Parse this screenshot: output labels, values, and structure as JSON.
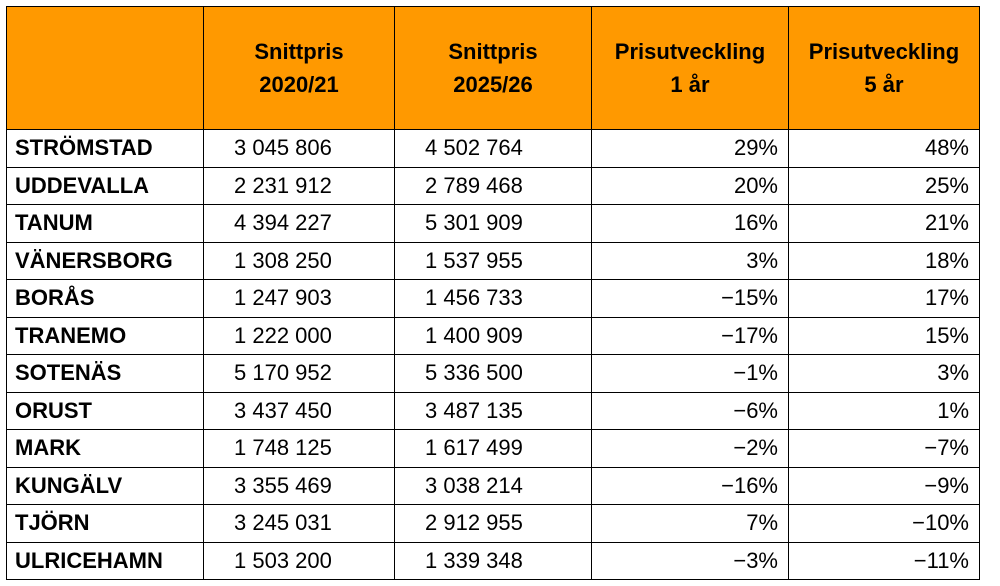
{
  "header": {
    "col0": "",
    "col1": [
      "Snittpris",
      "2020/21"
    ],
    "col2": [
      "Snittpris",
      "2025/26"
    ],
    "col3": [
      "Prisutveckling",
      "1 år"
    ],
    "col4": [
      "Prisutveckling",
      "5 år"
    ]
  },
  "rows": [
    {
      "name": "STRÖMSTAD",
      "p1": "3 045 806",
      "p2": "4 502 764",
      "y1": "29%",
      "y5": "48%"
    },
    {
      "name": "UDDEVALLA",
      "p1": "2 231 912",
      "p2": "2 789 468",
      "y1": "20%",
      "y5": "25%"
    },
    {
      "name": "TANUM",
      "p1": "4 394 227",
      "p2": "5 301 909",
      "y1": "16%",
      "y5": "21%"
    },
    {
      "name": "VÄNERSBORG",
      "p1": "1 308 250",
      "p2": "1 537 955",
      "y1": "3%",
      "y5": "18%"
    },
    {
      "name": "BORÅS",
      "p1": "1 247 903",
      "p2": "1 456 733",
      "y1": "−15%",
      "y5": "17%"
    },
    {
      "name": "TRANEMO",
      "p1": "1 222 000",
      "p2": "1 400 909",
      "y1": "−17%",
      "y5": "15%"
    },
    {
      "name": "SOTENÄS",
      "p1": "5 170 952",
      "p2": "5 336 500",
      "y1": "−1%",
      "y5": "3%"
    },
    {
      "name": "ORUST",
      "p1": "3 437 450",
      "p2": "3 487 135",
      "y1": "−6%",
      "y5": "1%"
    },
    {
      "name": "MARK",
      "p1": "1 748 125",
      "p2": "1 617 499",
      "y1": "−2%",
      "y5": "−7%"
    },
    {
      "name": "KUNGÄLV",
      "p1": "3 355 469",
      "p2": "3 038 214",
      "y1": "−16%",
      "y5": "−9%"
    },
    {
      "name": "TJÖRN",
      "p1": "3 245 031",
      "p2": "2 912 955",
      "y1": "7%",
      "y5": "−10%"
    },
    {
      "name": "ULRICEHAMN",
      "p1": "1 503 200",
      "p2": "1 339 348",
      "y1": "−3%",
      "y5": "−11%"
    }
  ]
}
